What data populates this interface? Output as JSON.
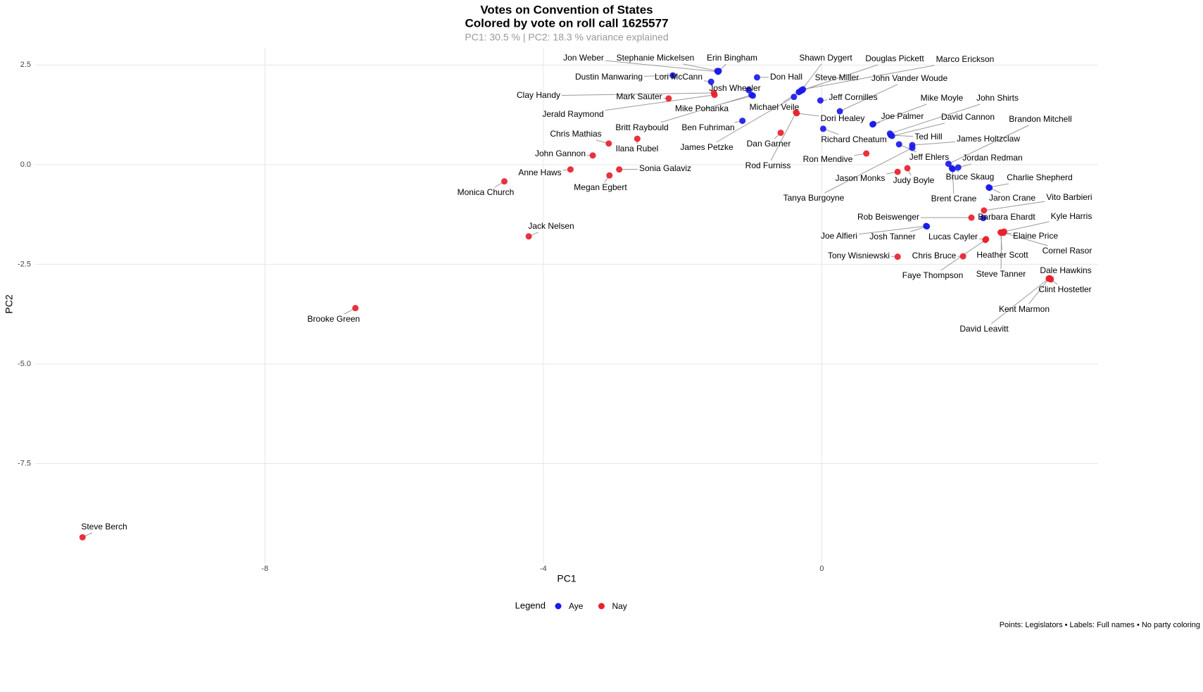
{
  "chart_data": {
    "type": "scatter",
    "title": [
      "Votes on Convention of States",
      "Colored by vote on roll call 1625577"
    ],
    "subtitle": "PC1: 30.5 % | PC2: 18.3 % variance explained",
    "x_label": "PC1",
    "y_label": "PC2",
    "legend_title": "Legend",
    "legend_position": "bottom",
    "caption": "Points: Legislators • Labels: Full names • No party coloring",
    "grid": true,
    "xlim": [
      -11.3,
      3.97
    ],
    "ylim": [
      -10.0,
      2.93
    ],
    "xticks": [
      -8,
      -4,
      0
    ],
    "yticks": [
      2.5,
      {
        "value": 0,
        "label": "0.0"
      },
      -2.5,
      {
        "value": -5,
        "label": "-5.0"
      },
      -7.5
    ],
    "series": [
      {
        "name": "Aye",
        "color": "#1a1aeb",
        "labels": [
          "Jon Weber",
          "Stephanie Mickelsen",
          "Erin Bingham",
          "Dustin Manwaring",
          "Lori McCann",
          "Josh Wheeler",
          "Mike Pohanka",
          "Britt Raybould",
          "Don Hall",
          "Ben Fuhriman",
          "James Petzke",
          "Michael Veile",
          "Shawn Dygert",
          "Steve Miller",
          "Douglas Pickett",
          "Marco Erickson",
          "Jeff Cornilles",
          "John Vander Woude",
          "Richard Cheatum",
          "Joe Palmer",
          "Mike Moyle",
          "John Shirts",
          "David Cannon",
          "Ted Hill",
          "Jeff Ehlers",
          "James Holtzclaw",
          "Tanya Burgoyne",
          "Brandon Mitchell",
          "Jordan Redman",
          "Bruce Skaug",
          "Brent Crane",
          "Charlie Shepherd",
          "Jaron Crane",
          "Barbara Ehardt",
          "Joe Alfieri",
          "Josh Tanner"
        ],
        "x": [
          -1.49,
          -1.5,
          -1.48,
          -2.14,
          -1.59,
          -1.05,
          -0.99,
          -1.01,
          -0.93,
          -1.14,
          -0.4,
          -0.33,
          -0.29,
          -0.31,
          -0.28,
          -0.27,
          -0.02,
          0.26,
          0.02,
          0.73,
          0.74,
          0.98,
          1.01,
          0.99,
          1.11,
          1.3,
          1.3,
          1.82,
          1.96,
          1.87,
          1.88,
          2.4,
          2.41,
          2.32,
          1.5,
          1.51
        ],
        "values": [
          2.33,
          2.35,
          2.35,
          2.24,
          2.08,
          1.87,
          1.73,
          1.75,
          2.19,
          1.1,
          1.7,
          1.82,
          1.87,
          1.84,
          1.87,
          1.89,
          1.61,
          1.34,
          0.9,
          1.01,
          1.02,
          0.78,
          0.72,
          0.74,
          0.51,
          0.49,
          0.42,
          0.02,
          -0.07,
          -0.09,
          -0.11,
          -0.57,
          -0.58,
          -1.34,
          -1.54,
          -1.55
        ]
      },
      {
        "name": "Nay",
        "color": "#e8212e",
        "labels": [
          "Steve Berch",
          "Brooke Green",
          "Jack Nelsen",
          "Monica Church",
          "Anne Haws",
          "Megan Egbert",
          "Sonia Galaviz",
          "John Gannon",
          "Chris Mathias",
          "Ilana Rubel",
          "Mark Sauter",
          "Clay Handy",
          "Jerald Raymond",
          "Dan Garner",
          "Rod Furniss",
          "Dori Healey",
          "Ron Mendive",
          "Jason Monks",
          "Judy Boyle",
          "Vito Barbieri",
          "Rob Beiswenger",
          "Kyle Harris",
          "Elaine Price",
          "Cornel Rasor",
          "Heather Scott",
          "Steve Tanner",
          "Lucas Cayler",
          "Faye Thompson",
          "Chris Bruce",
          "Tony Wisniewski",
          "Dale Hawkins",
          "Clint Hostetler",
          "Kent Marmon",
          "David Leavitt"
        ],
        "x": [
          -10.62,
          -6.7,
          -4.21,
          -4.56,
          -3.61,
          -3.05,
          -2.91,
          -3.29,
          -3.06,
          -2.65,
          -2.2,
          -1.55,
          -1.54,
          -0.59,
          -0.37,
          -0.36,
          0.64,
          1.09,
          1.23,
          2.33,
          2.15,
          2.62,
          2.59,
          2.61,
          2.57,
          2.58,
          2.36,
          2.35,
          2.03,
          1.09,
          3.28,
          3.29,
          3.27,
          3.26
        ],
        "values": [
          -9.35,
          -3.6,
          -1.8,
          -0.42,
          -0.12,
          -0.27,
          -0.12,
          0.23,
          0.53,
          0.65,
          1.66,
          1.8,
          1.75,
          0.8,
          1.31,
          1.29,
          0.28,
          -0.18,
          -0.09,
          -1.15,
          -1.33,
          -1.68,
          -1.7,
          -1.71,
          -1.7,
          -1.71,
          -1.87,
          -1.89,
          -2.3,
          -2.31,
          -2.86,
          -2.88,
          -2.85,
          -2.86
        ]
      }
    ]
  }
}
